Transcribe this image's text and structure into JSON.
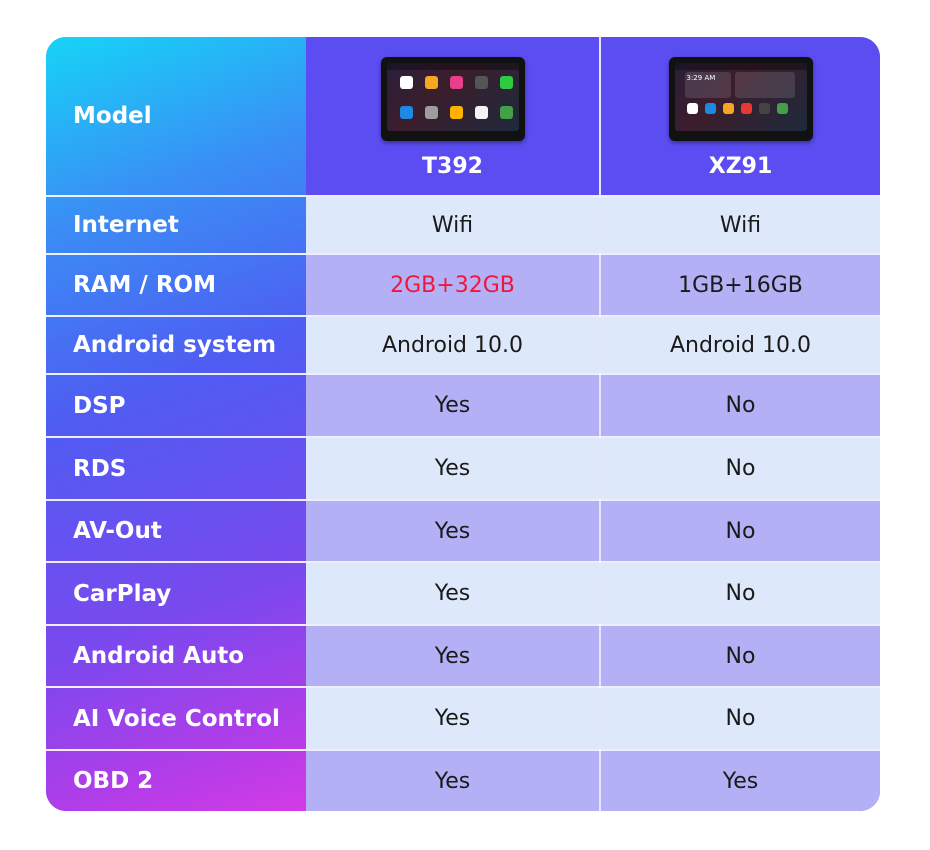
{
  "table": {
    "header_label": "Model",
    "models": [
      {
        "name": "T392"
      },
      {
        "name": "XZ91"
      }
    ],
    "rows": [
      {
        "label": "Internet",
        "values": [
          "Wifi",
          "Wifi"
        ]
      },
      {
        "label": "RAM / ROM",
        "values": [
          "2GB+32GB",
          "1GB+16GB"
        ]
      },
      {
        "label": "Android system",
        "values": [
          "Android 10.0",
          "Android 10.0"
        ]
      },
      {
        "label": "DSP",
        "values": [
          "Yes",
          "No"
        ]
      },
      {
        "label": "RDS",
        "values": [
          "Yes",
          "No"
        ]
      },
      {
        "label": "AV-Out",
        "values": [
          "Yes",
          "No"
        ]
      },
      {
        "label": "CarPlay",
        "values": [
          "Yes",
          "No"
        ]
      },
      {
        "label": "Android Auto",
        "values": [
          "Yes",
          "No"
        ]
      },
      {
        "label": "AI Voice Control",
        "values": [
          "Yes",
          "No"
        ]
      },
      {
        "label": "OBD 2",
        "values": [
          "Yes",
          "Yes"
        ]
      }
    ],
    "xz91_clock": "3:29 AM"
  },
  "colors": {
    "highlight": "#f0163a",
    "row_light": "#dde9fb",
    "row_purple": "#b4b0f6"
  }
}
